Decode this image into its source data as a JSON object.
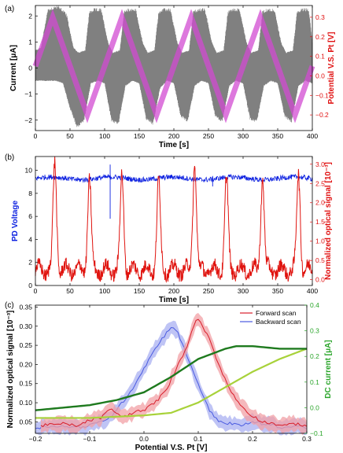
{
  "colors": {
    "current_gray": "#808080",
    "triangle_magenta": "#d24bd2",
    "pd_blue": "#0b1fe0",
    "optical_red": "#e0140f",
    "right_axis_red": "#e01010",
    "forward_red": "#d81e2b",
    "forward_band": "#f2a0a5",
    "backward_blue": "#4a5be0",
    "backward_band": "#a9b0f2",
    "dc_green_axis": "#2aa52a",
    "dc_dark_green": "#1e7a1e",
    "dc_light_green": "#a8d23a"
  },
  "chart_data": [
    {
      "panel": "(a)",
      "type": "line",
      "xlabel": "Time [s]",
      "ylabel": "Current [μA]",
      "y2label": "Potential V.S. Pt [V]",
      "xlim": [
        0,
        400
      ],
      "ylim": [
        -2.4,
        2.4
      ],
      "y2lim": [
        -0.28,
        0.36
      ],
      "xticks": [
        "0",
        "50",
        "100",
        "150",
        "200",
        "250",
        "300",
        "350",
        "400"
      ],
      "yticks": [
        "−2",
        "−1",
        "0",
        "1",
        "2"
      ],
      "y2ticks": [
        "−0.2",
        "−0.1",
        "0.0",
        "0.1",
        "0.2",
        "0.3"
      ],
      "grid": false,
      "series": [
        {
          "kind": "oscillating current envelope (gray band)",
          "color": "gray",
          "envelope_upper": {
            "x": [
              0,
              8,
              18,
              28,
              35,
              45,
              55,
              62,
              72,
              78,
              85,
              95,
              105,
              112,
              122,
              128,
              135,
              145,
              155,
              162,
              172,
              178,
              185,
              195,
              205,
              212,
              222,
              228,
              235,
              245,
              255,
              262,
              272,
              278,
              285,
              295,
              305,
              312,
              322,
              328,
              335,
              345,
              355,
              362,
              372,
              378,
              385,
              395,
              400
            ],
            "y": [
              0.7,
              0.8,
              2.3,
              2.4,
              2.4,
              2.1,
              0.8,
              0.6,
              0.7,
              2.2,
              2.3,
              2.3,
              1.0,
              0.6,
              0.7,
              2.2,
              2.3,
              2.3,
              1.0,
              0.6,
              0.7,
              2.2,
              2.3,
              2.3,
              1.0,
              0.6,
              0.7,
              2.2,
              2.3,
              2.3,
              1.0,
              0.6,
              0.7,
              2.2,
              2.3,
              2.3,
              1.0,
              0.6,
              0.7,
              2.2,
              2.3,
              2.3,
              1.0,
              0.6,
              0.7,
              2.2,
              2.3,
              2.3,
              1.0
            ]
          },
          "envelope_lower": {
            "x": [
              0,
              10,
              20,
              30,
              40,
              50,
              60,
              70,
              80,
              90,
              100,
              110,
              120,
              130,
              140,
              150,
              160,
              170,
              180,
              190,
              200,
              210,
              220,
              230,
              240,
              250,
              260,
              270,
              280,
              290,
              300,
              310,
              320,
              330,
              340,
              350,
              360,
              370,
              380,
              390,
              400
            ],
            "y": [
              -0.5,
              -0.5,
              -0.5,
              -0.5,
              -0.6,
              -1.6,
              -2.3,
              -2.1,
              -0.6,
              -0.5,
              -0.6,
              -2.1,
              -2.2,
              -0.7,
              -0.5,
              -0.6,
              -2.0,
              -2.2,
              -0.8,
              -0.5,
              -0.6,
              -1.9,
              -2.1,
              -0.7,
              -0.5,
              -0.6,
              -1.9,
              -2.1,
              -0.7,
              -0.5,
              -0.6,
              -2.0,
              -2.1,
              -0.7,
              -0.5,
              -0.6,
              -1.9,
              -2.1,
              -0.7,
              -0.5,
              -0.6
            ]
          }
        },
        {
          "kind": "triangular potential (right axis)",
          "color": "magenta",
          "x": [
            0,
            25,
            75,
            125,
            175,
            225,
            275,
            325,
            375,
            400
          ],
          "y": [
            0.05,
            0.3,
            -0.2,
            0.3,
            -0.2,
            0.3,
            -0.2,
            0.3,
            -0.2,
            0.05
          ]
        }
      ]
    },
    {
      "panel": "(b)",
      "type": "line",
      "xlabel": "Time [s]",
      "ylabel": "PD Voltage",
      "y2label": "Normalized optical signal [10⁻³]",
      "xlim": [
        0,
        400
      ],
      "ylim": [
        0,
        11.2
      ],
      "y2lim": [
        -0.15,
        3.2
      ],
      "xticks": [
        "0",
        "50",
        "100",
        "150",
        "200",
        "250",
        "300",
        "350",
        "400"
      ],
      "yticks": [
        "0",
        "2",
        "4",
        "6",
        "8",
        "10"
      ],
      "y2ticks": [
        "0.0",
        "0.5",
        "1.0",
        "1.5",
        "2.0",
        "2.5",
        "3.0"
      ],
      "grid": false,
      "series": [
        {
          "name_hidden": "PD voltage",
          "color": "blue",
          "baseline": 9.3,
          "spikes": [
            {
              "x": 108,
              "low": 5.8,
              "high": 10.5
            },
            {
              "x": 256,
              "low": 8.6,
              "high": 9.3
            }
          ]
        },
        {
          "name_hidden": "Normalized optical signal",
          "color": "red",
          "peaks": [
            {
              "x": 28,
              "y": 3.0
            },
            {
              "x": 78,
              "y": 2.6
            },
            {
              "x": 125,
              "y": 2.7
            },
            {
              "x": 178,
              "y": 2.55
            },
            {
              "x": 230,
              "y": 3.05
            },
            {
              "x": 276,
              "y": 2.6
            },
            {
              "x": 328,
              "y": 2.65
            },
            {
              "x": 380,
              "y": 2.75
            }
          ],
          "baseline": 0.25
        }
      ]
    },
    {
      "panel": "(c)",
      "type": "line",
      "xlabel": "Potential V.S. Pt [V]",
      "ylabel": "Normalized optical signal [10⁻³]",
      "y2label": "DC current [μA]",
      "xlim": [
        -0.2,
        0.3
      ],
      "ylim": [
        0.02,
        0.355
      ],
      "y2lim": [
        -0.1,
        0.4
      ],
      "xticks": [
        "−0.2",
        "−0.1",
        "0.0",
        "0.1",
        "0.2",
        "0.3"
      ],
      "yticks": [
        "0.05",
        "0.10",
        "0.15",
        "0.20",
        "0.25",
        "0.30",
        "0.35"
      ],
      "y2ticks": [
        "−0.1",
        "0.0",
        "0.1",
        "0.2",
        "0.3",
        "0.4"
      ],
      "legend": {
        "position": "top-right",
        "entries": [
          "Forward scan",
          "Backward scan"
        ]
      },
      "grid": false,
      "series": [
        {
          "name": "Forward scan",
          "color": "red",
          "x": [
            -0.19,
            -0.15,
            -0.12,
            -0.1,
            -0.08,
            -0.06,
            -0.04,
            -0.02,
            0.0,
            0.02,
            0.04,
            0.06,
            0.08,
            0.09,
            0.1,
            0.12,
            0.14,
            0.16,
            0.18,
            0.2,
            0.22,
            0.24,
            0.26,
            0.28,
            0.3
          ],
          "y": [
            0.04,
            0.045,
            0.04,
            0.055,
            0.06,
            0.085,
            0.06,
            0.075,
            0.08,
            0.1,
            0.13,
            0.19,
            0.25,
            0.3,
            0.32,
            0.27,
            0.19,
            0.13,
            0.09,
            0.065,
            0.05,
            0.045,
            0.04,
            0.045,
            0.04
          ],
          "band": 0.018
        },
        {
          "name": "Backward scan",
          "color": "blue",
          "x": [
            -0.2,
            -0.16,
            -0.13,
            -0.1,
            -0.08,
            -0.06,
            -0.04,
            -0.02,
            0.0,
            0.02,
            0.04,
            0.05,
            0.06,
            0.08,
            0.1,
            0.12,
            0.14,
            0.16,
            0.18,
            0.2,
            0.22,
            0.24,
            0.26,
            0.28,
            0.3
          ],
          "y": [
            0.035,
            0.04,
            0.035,
            0.04,
            0.05,
            0.065,
            0.1,
            0.14,
            0.19,
            0.24,
            0.28,
            0.3,
            0.29,
            0.22,
            0.15,
            0.08,
            0.05,
            0.045,
            0.04,
            0.05,
            0.045,
            0.04,
            0.035,
            0.04,
            0.035
          ],
          "band": 0.018
        },
        {
          "kind": "DC current, dark green (right axis)",
          "color": "dark green",
          "x": [
            -0.2,
            -0.1,
            -0.05,
            0.0,
            0.05,
            0.1,
            0.15,
            0.17,
            0.2,
            0.25,
            0.3
          ],
          "y": [
            -0.01,
            0.01,
            0.03,
            0.06,
            0.12,
            0.19,
            0.23,
            0.24,
            0.24,
            0.23,
            0.23
          ]
        },
        {
          "kind": "DC current, light green (right axis)",
          "color": "light green",
          "x": [
            -0.2,
            -0.1,
            0.0,
            0.05,
            0.1,
            0.15,
            0.2,
            0.25,
            0.3
          ],
          "y": [
            -0.04,
            -0.04,
            -0.03,
            -0.02,
            0.02,
            0.08,
            0.14,
            0.19,
            0.23
          ]
        }
      ]
    }
  ]
}
